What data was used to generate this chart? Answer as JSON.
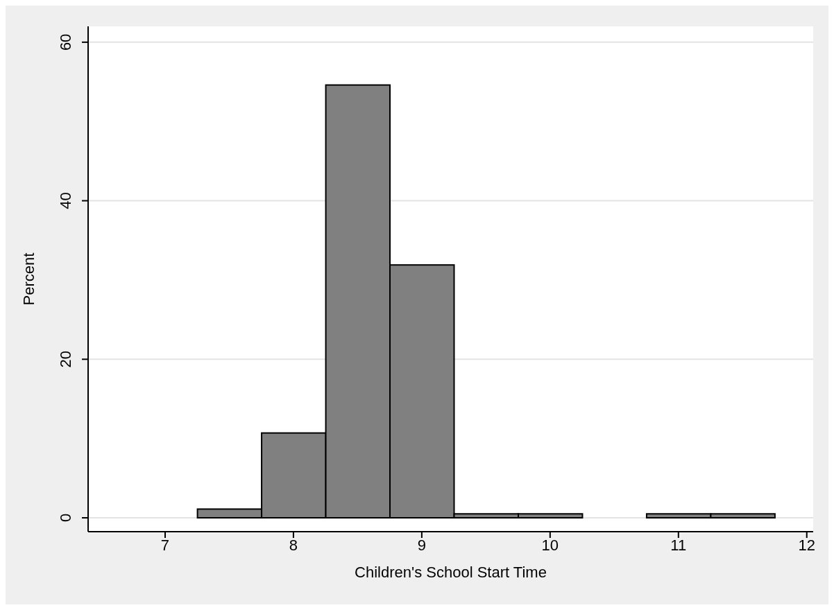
{
  "chart_data": {
    "type": "histogram",
    "xlabel": "Children's School Start Time",
    "ylabel": "Percent",
    "bins": [
      7.25,
      7.75,
      8.25,
      8.75,
      9.25,
      9.75,
      10.25,
      10.75,
      11.25,
      11.75
    ],
    "values": [
      1.1,
      10.7,
      54.6,
      31.9,
      0.5,
      0.5,
      0,
      0.5,
      0.5
    ],
    "color": "#808080",
    "xlim": [
      6.4,
      12.05
    ],
    "xticks": [
      7,
      8,
      9,
      10,
      11,
      12
    ],
    "ylim": [
      -1.75,
      62
    ],
    "yticks": [
      0,
      20,
      40,
      60
    ],
    "grid": "y"
  }
}
